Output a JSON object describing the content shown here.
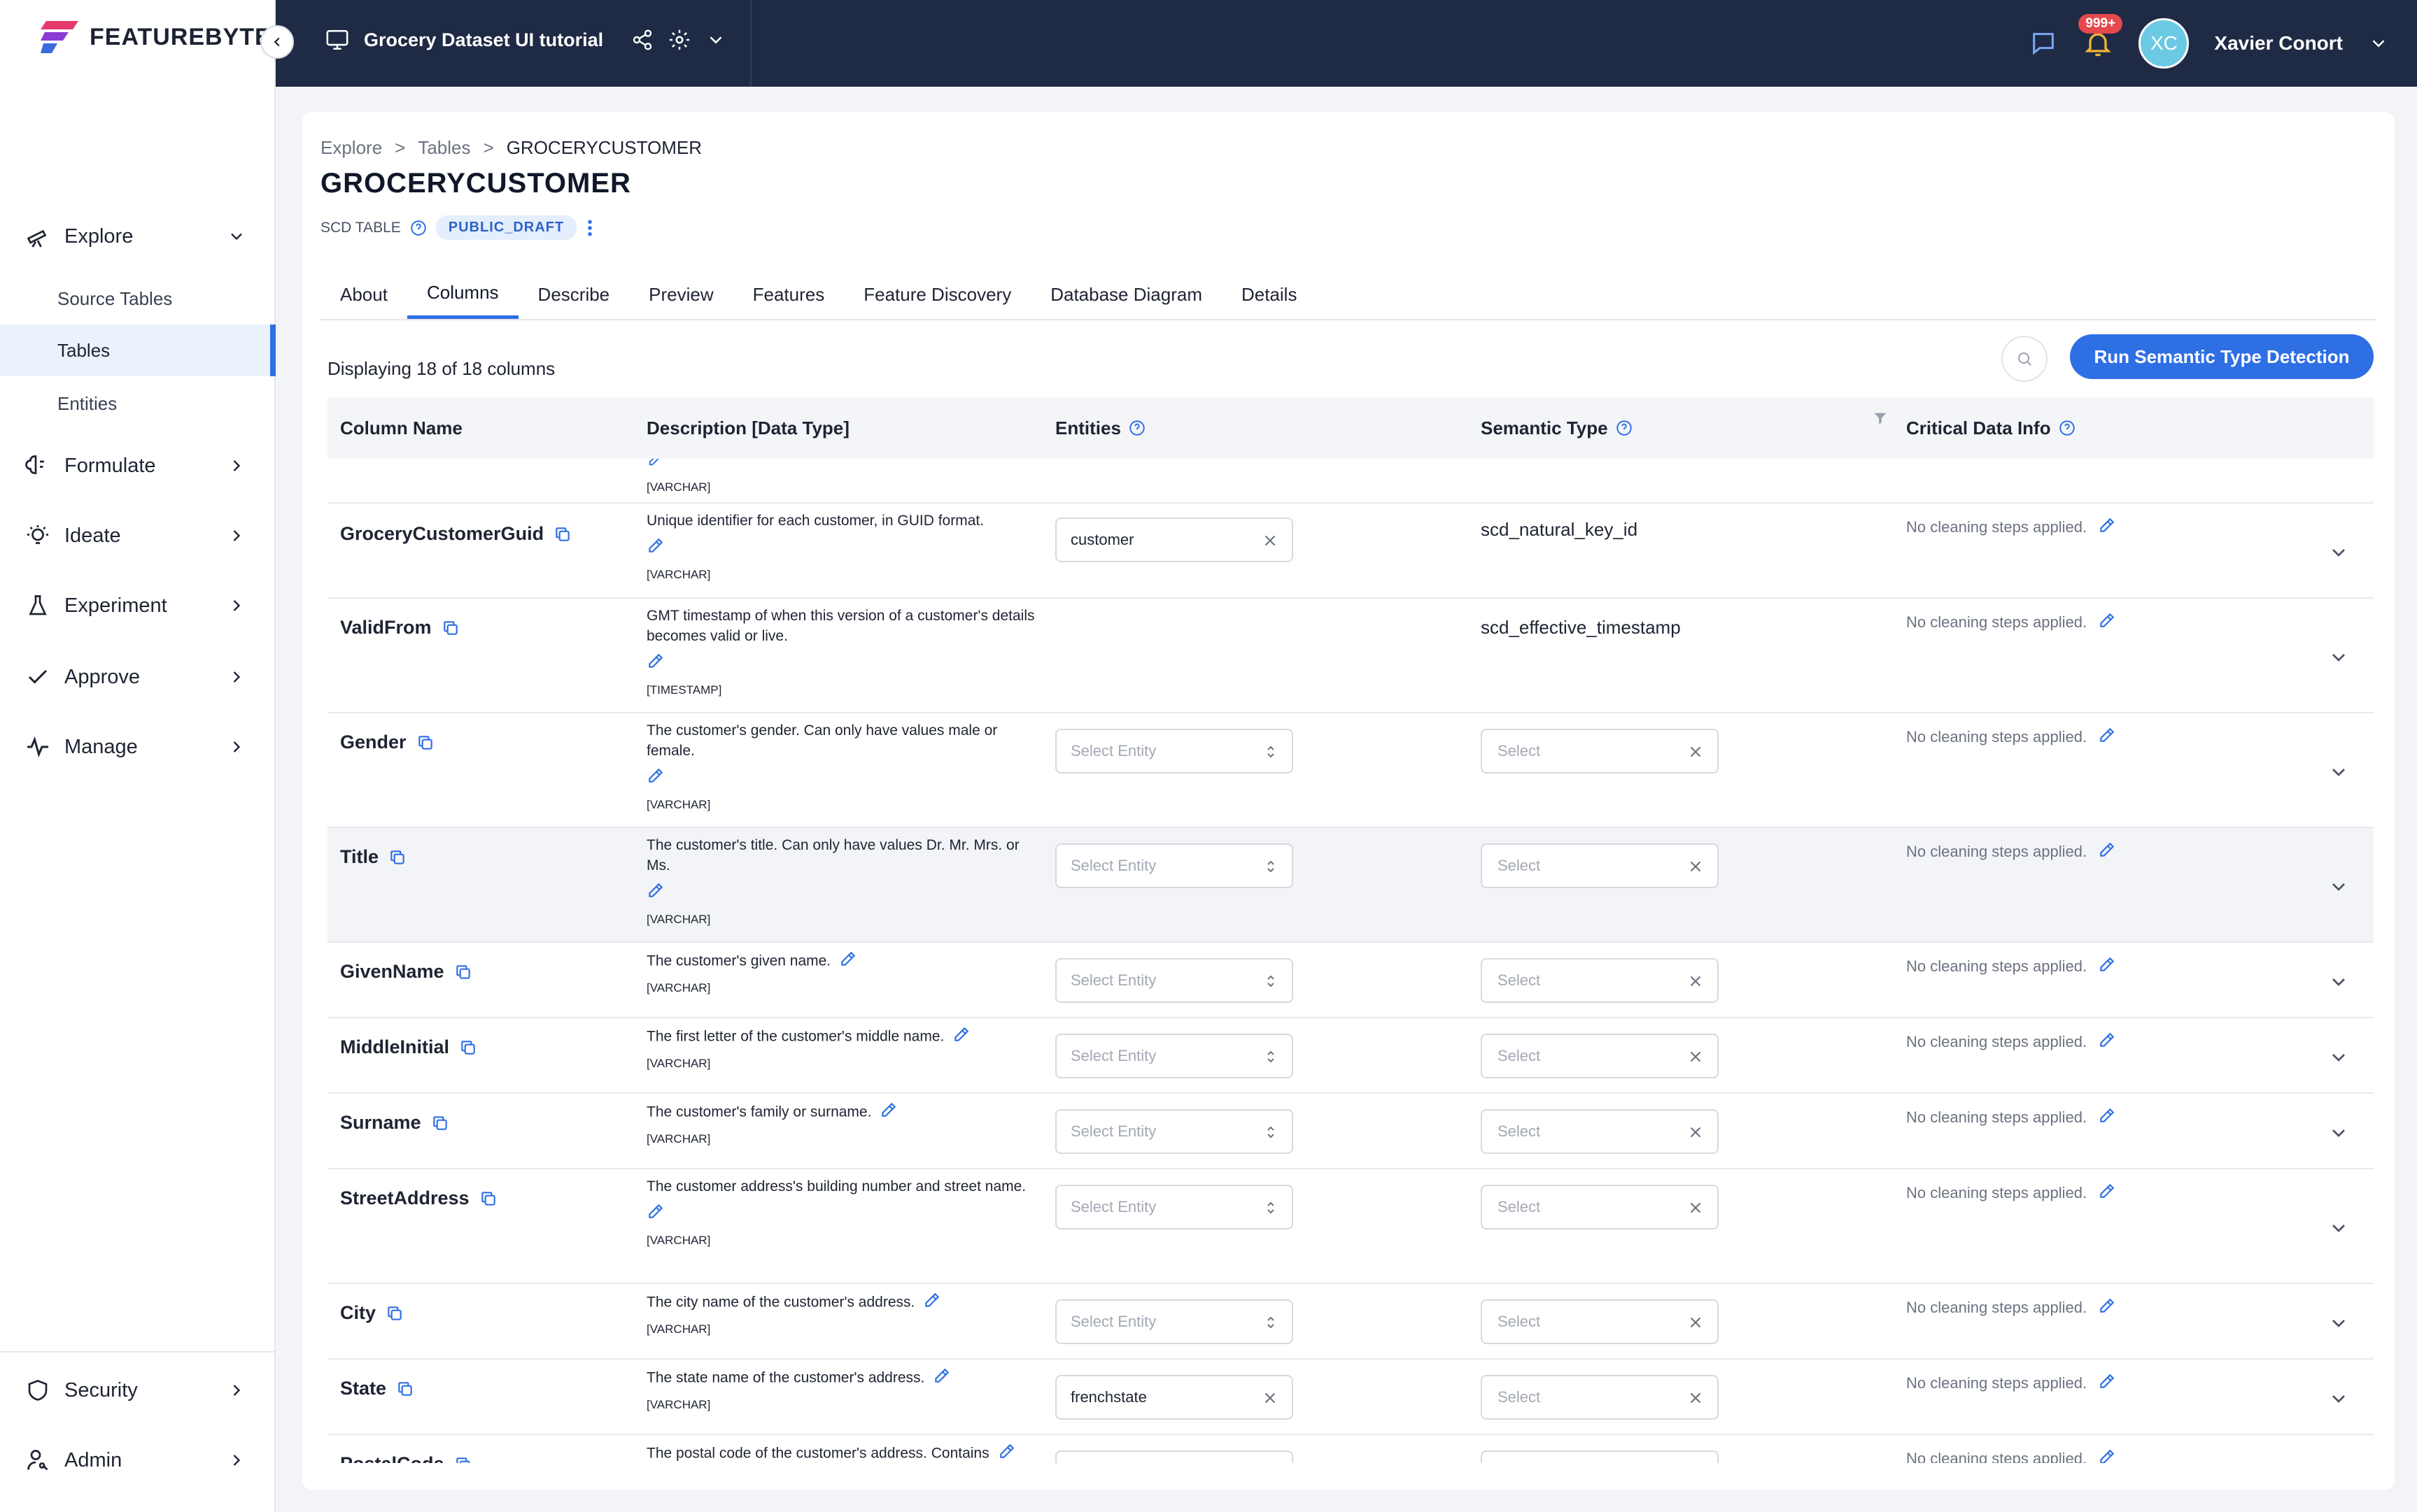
{
  "app": {
    "logo_text": "FEATUREBYTE",
    "project_name": "Grocery Dataset UI tutorial",
    "notification_badge": "999+",
    "user_initials": "XC",
    "user_name": "Xavier Conort"
  },
  "sidebar": {
    "explore": "Explore",
    "sub_items": [
      "Source Tables",
      "Tables",
      "Entities"
    ],
    "formulate": "Formulate",
    "ideate": "Ideate",
    "experiment": "Experiment",
    "approve": "Approve",
    "manage": "Manage",
    "security": "Security",
    "admin": "Admin"
  },
  "breadcrumb": [
    "Explore",
    ">",
    "Tables",
    ">",
    "GROCERYCUSTOMER"
  ],
  "page": {
    "title": "GROCERYCUSTOMER",
    "table_type": "SCD TABLE",
    "status": "PUBLIC_DRAFT",
    "tabs": [
      "About",
      "Columns",
      "Describe",
      "Preview",
      "Features",
      "Feature Discovery",
      "Database Diagram",
      "Details"
    ],
    "active_tab": "Columns",
    "display_count": "Displaying 18 of 18 columns",
    "run_button": "Run Semantic Type Detection"
  },
  "table": {
    "headers": [
      "Column Name",
      "Description [Data Type]",
      "Entities",
      "Semantic Type",
      "Critical Data Info"
    ],
    "partial_top_dtype": "[VARCHAR]",
    "no_cleaning": "No cleaning steps applied.",
    "entity_placeholder": "Select Entity",
    "semantic_placeholder": "Select",
    "rows": [
      {
        "name": "GroceryCustomerGuid",
        "desc": "Unique identifier for each customer, in GUID format.",
        "dtype": "[VARCHAR]",
        "entity": "customer",
        "semantic": "scd_natural_key_id"
      },
      {
        "name": "ValidFrom",
        "desc": "GMT timestamp of when this version of a customer's details becomes valid or live.",
        "dtype": "[TIMESTAMP]",
        "entity": "",
        "semantic": "scd_effective_timestamp"
      },
      {
        "name": "Gender",
        "desc": "The customer's gender. Can only have values male or female.",
        "dtype": "[VARCHAR]",
        "entity": "",
        "semantic": ""
      },
      {
        "name": "Title",
        "desc": "The customer's title. Can only have values Dr. Mr. Mrs. or Ms.",
        "dtype": "[VARCHAR]",
        "entity": "",
        "semantic": ""
      },
      {
        "name": "GivenName",
        "desc": "The customer's given name.",
        "dtype": "[VARCHAR]",
        "entity": "",
        "semantic": ""
      },
      {
        "name": "MiddleInitial",
        "desc": "The first letter of the customer's middle name.",
        "dtype": "[VARCHAR]",
        "entity": "",
        "semantic": ""
      },
      {
        "name": "Surname",
        "desc": "The customer's family or surname.",
        "dtype": "[VARCHAR]",
        "entity": "",
        "semantic": ""
      },
      {
        "name": "StreetAddress",
        "desc": "The customer address's building number and street name.",
        "dtype": "[VARCHAR]",
        "entity": "",
        "semantic": ""
      },
      {
        "name": "City",
        "desc": "The city name of the customer's address.",
        "dtype": "[VARCHAR]",
        "entity": "",
        "semantic": ""
      },
      {
        "name": "State",
        "desc": "The state name of the customer's address.",
        "dtype": "[VARCHAR]",
        "entity": "frenchstate",
        "semantic": ""
      },
      {
        "name": "PostalCode",
        "desc": "The postal code of the customer's address. Contains",
        "dtype": "",
        "entity": "",
        "semantic": ""
      }
    ]
  },
  "colors": {
    "accent": "#2f6fe4",
    "topbar": "#1f2a44",
    "badge": "#e5484d"
  },
  "icons": [
    "telescope-icon",
    "brain-icon",
    "lightbulb-icon",
    "flask-icon",
    "check-icon",
    "activity-icon",
    "shield-icon",
    "user-key-icon",
    "monitor-icon",
    "share-icon",
    "gear-icon",
    "chat-icon",
    "bell-icon",
    "copy-icon",
    "edit-icon",
    "help-icon",
    "filter-icon",
    "search-icon",
    "close-icon",
    "updown-icon",
    "chevron-down-icon"
  ]
}
